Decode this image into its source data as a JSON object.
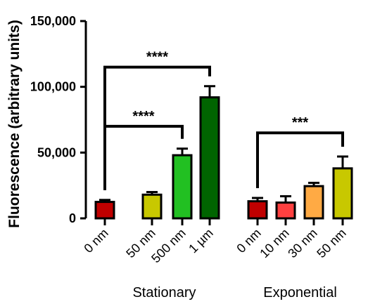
{
  "chart_data": {
    "type": "bar",
    "ylabel": "Fluorescence (arbitrary units)",
    "ylim": [
      0,
      150000
    ],
    "yticks": [
      0,
      50000,
      100000,
      150000
    ],
    "ytick_labels": [
      "0",
      "50,000",
      "100,000",
      "150,000"
    ],
    "groups": [
      {
        "label": "Stationary",
        "bars": [
          {
            "category": "0 nm",
            "value": 12500,
            "error": 1500,
            "color": "#c00000"
          },
          {
            "category": "50 nm",
            "value": 18000,
            "error": 2000,
            "color": "#c8c800"
          },
          {
            "category": "500 nm",
            "value": 48000,
            "error": 5000,
            "color": "#22c022"
          },
          {
            "category": "1 µm",
            "value": 92000,
            "error": 8500,
            "color": "#006400"
          }
        ]
      },
      {
        "label": "Exponential",
        "bars": [
          {
            "category": "0 nm",
            "value": 13000,
            "error": 2500,
            "color": "#c00000"
          },
          {
            "category": "10 nm",
            "value": 12000,
            "error": 4800,
            "color": "#ff4040"
          },
          {
            "category": "30 nm",
            "value": 24500,
            "error": 2500,
            "color": "#ffaa44"
          },
          {
            "category": "50 nm",
            "value": 38000,
            "error": 9000,
            "color": "#c8c800"
          }
        ]
      }
    ],
    "significance": [
      {
        "from": [
          0,
          0
        ],
        "to": [
          0,
          3
        ],
        "y": 115000,
        "label": "****"
      },
      {
        "from": [
          0,
          0
        ],
        "to": [
          0,
          2
        ],
        "y": 70000,
        "label": "****"
      },
      {
        "from": [
          1,
          0
        ],
        "to": [
          1,
          3
        ],
        "y": 65000,
        "label": "***"
      }
    ]
  }
}
